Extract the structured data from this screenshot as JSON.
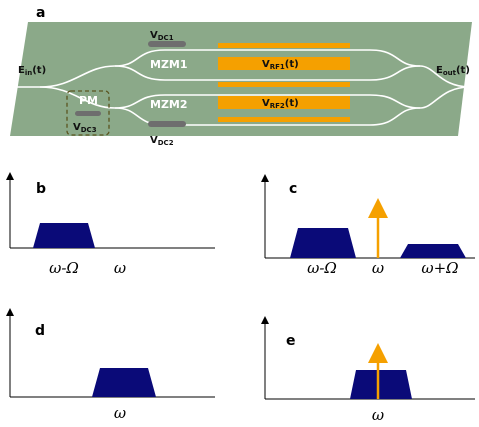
{
  "panel_a": {
    "label": "a",
    "vdc1": {
      "main": "V",
      "sub": "DC1"
    },
    "mzm1": "MZM1",
    "vrf1": {
      "main": "V",
      "sub": "RF1",
      "suffix": "(t)"
    },
    "ein": {
      "main": "E",
      "sub": "in",
      "suffix": "(t)"
    },
    "eout": {
      "main": "E",
      "sub": "out",
      "suffix": "(t)"
    },
    "pm": "PM",
    "mzm2": "MZM2",
    "vrf2": {
      "main": "V",
      "sub": "RF2",
      "suffix": "(t)"
    },
    "vdc3": {
      "main": "V",
      "sub": "DC3"
    },
    "vdc2": {
      "main": "V",
      "sub": "DC2"
    }
  },
  "panel_b": {
    "label": "b",
    "x_labels": [
      "ω-Ω",
      "ω"
    ]
  },
  "panel_c": {
    "label": "c",
    "x_labels": [
      "ω-Ω",
      "ω",
      "ω+Ω"
    ]
  },
  "panel_d": {
    "label": "d",
    "x_labels": [
      "ω"
    ]
  },
  "panel_e": {
    "label": "e",
    "x_labels": [
      "ω"
    ]
  }
}
